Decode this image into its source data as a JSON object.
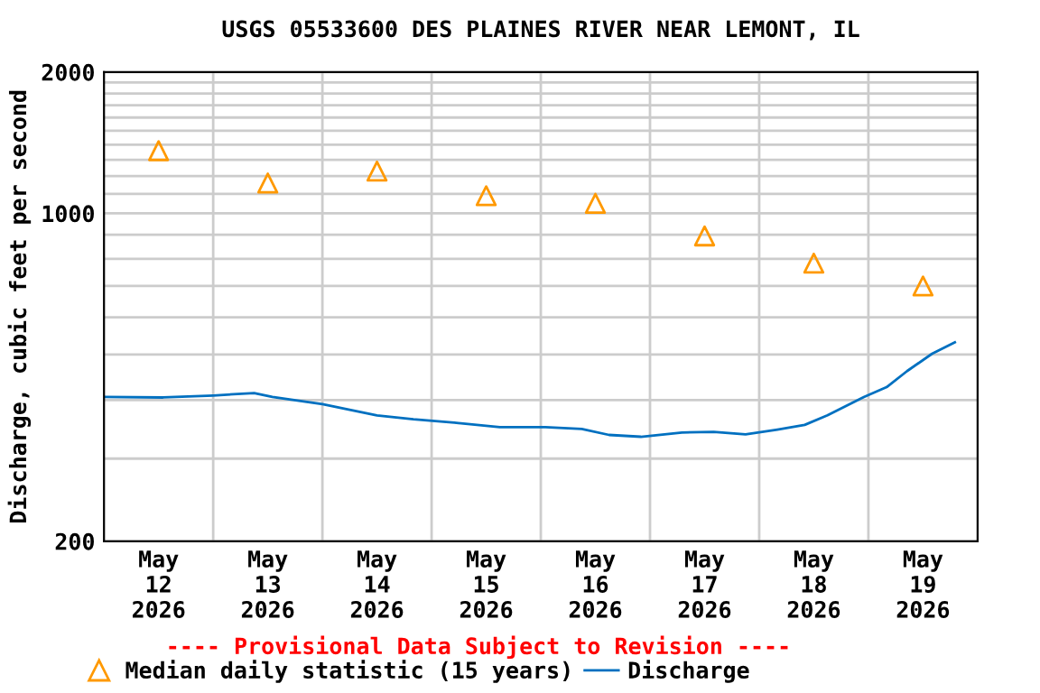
{
  "chart_data": {
    "type": "line",
    "title": "USGS 05533600 DES PLAINES RIVER NEAR LEMONT, IL",
    "ylabel": "Discharge, cubic feet per second",
    "annotations": [
      "---- Provisional Data Subject to Revision ----"
    ],
    "log": "y",
    "grid": true,
    "legend": "bottom",
    "xlim": [
      "2026-05-12T00:00",
      "2026-05-20T00:00"
    ],
    "xticks": [
      {
        "value": "2026-05-12T12:00",
        "label": "May\n12\n2026"
      },
      {
        "value": "2026-05-13T12:00",
        "label": "May\n13\n2026"
      },
      {
        "value": "2026-05-14T12:00",
        "label": "May\n14\n2026"
      },
      {
        "value": "2026-05-15T12:00",
        "label": "May\n15\n2026"
      },
      {
        "value": "2026-05-16T12:00",
        "label": "May\n16\n2026"
      },
      {
        "value": "2026-05-17T12:00",
        "label": "May\n17\n2026"
      },
      {
        "value": "2026-05-18T12:00",
        "label": "May\n18\n2026"
      },
      {
        "value": "2026-05-19T12:00",
        "label": "May\n19\n2026"
      },
      {
        "value": "2026-05-13T00:00",
        "label": null
      },
      {
        "value": "2026-05-14T00:00",
        "label": null
      },
      {
        "value": "2026-05-15T00:00",
        "label": null
      },
      {
        "value": "2026-05-16T00:00",
        "label": null
      },
      {
        "value": "2026-05-17T00:00",
        "label": null
      },
      {
        "value": "2026-05-18T00:00",
        "label": null
      },
      {
        "value": "2026-05-19T00:00",
        "label": null
      }
    ],
    "ylim": [
      200,
      2000
    ],
    "yticks": [
      200,
      {
        "value": 300,
        "label": null
      },
      {
        "value": 400,
        "label": null
      },
      {
        "value": 500,
        "label": null
      },
      {
        "value": 600,
        "label": null
      },
      {
        "value": 700,
        "label": null
      },
      {
        "value": 800,
        "label": null
      },
      {
        "value": 900,
        "label": null
      },
      1000,
      {
        "value": 1100,
        "label": null
      },
      {
        "value": 1200,
        "label": null
      },
      {
        "value": 1300,
        "label": null
      },
      {
        "value": 1400,
        "label": null
      },
      {
        "value": 1500,
        "label": null
      },
      {
        "value": 1600,
        "label": null
      },
      {
        "value": 1700,
        "label": null
      },
      {
        "value": 1800,
        "label": null
      },
      {
        "value": 1900,
        "label": null
      },
      2000
    ],
    "series": [
      {
        "name": "Median daily statistic (15 years)",
        "type": "scatter",
        "marker": "triangle",
        "color": "#ff9900",
        "x": [
          "2026-05-12T12:00",
          "2026-05-13T12:00",
          "2026-05-14T12:00",
          "2026-05-15T12:00",
          "2026-05-16T12:00",
          "2026-05-17T12:00",
          "2026-05-18T12:00",
          "2026-05-19T12:00"
        ],
        "values": [
          1360,
          1160,
          1230,
          1090,
          1050,
          895,
          783,
          700
        ]
      },
      {
        "name": "Discharge",
        "color": "#0070c0",
        "x": [
          "2026-05-12T00:00",
          "2026-05-12T13:00",
          "2026-05-13T00:00",
          "2026-05-13T09:00",
          "2026-05-13T13:00",
          "2026-05-14T00:00",
          "2026-05-14T12:00",
          "2026-05-14T20:00",
          "2026-05-15T05:00",
          "2026-05-15T15:00",
          "2026-05-16T01:00",
          "2026-05-16T09:00",
          "2026-05-16T15:00",
          "2026-05-16T22:00",
          "2026-05-17T07:00",
          "2026-05-17T14:00",
          "2026-05-17T21:00",
          "2026-05-18T04:00",
          "2026-05-18T10:00",
          "2026-05-18T15:00",
          "2026-05-18T23:00",
          "2026-05-19T04:00",
          "2026-05-19T08:30",
          "2026-05-19T14:00",
          "2026-05-19T19:00"
        ],
        "values": [
          406,
          405,
          409,
          414,
          406,
          392,
          371,
          364,
          358,
          350,
          350,
          347,
          337,
          334,
          341,
          342,
          338,
          346,
          354,
          371,
          406,
          426,
          461,
          502,
          531
        ]
      }
    ]
  }
}
